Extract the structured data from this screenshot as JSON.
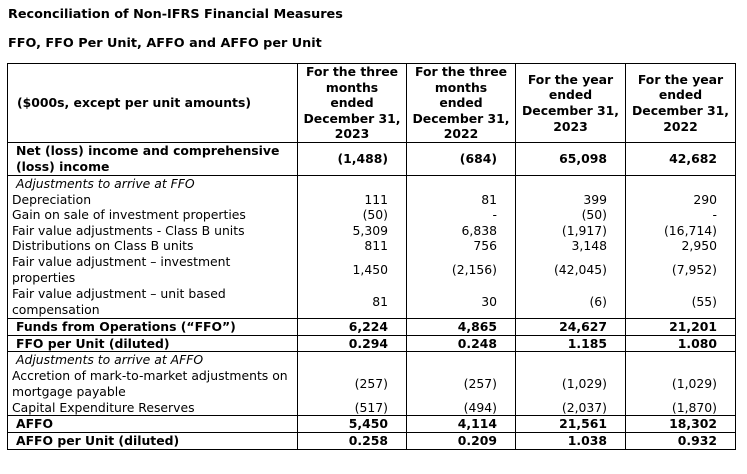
{
  "titles": {
    "main": "Reconciliation of Non-IFRS Financial Measures",
    "sub": "FFO, FFO Per Unit, AFFO and AFFO per Unit"
  },
  "table": {
    "header_label": "($000s, except per unit amounts)",
    "columns": [
      [
        "For the three",
        "months ended",
        "December 31,",
        "2023"
      ],
      [
        "For the three",
        "months ended",
        "December 31,",
        "2022"
      ],
      [
        "For the year",
        "ended",
        "December 31,",
        "2023"
      ],
      [
        "For the year",
        "ended",
        "December 31,",
        "2022"
      ]
    ],
    "rows": [
      {
        "label": "Net (loss) income and comprehensive (loss) income",
        "values": [
          "(1,488)",
          "(684)",
          "65,098",
          "42,682"
        ]
      },
      {
        "label": "Adjustments to arrive at FFO"
      },
      {
        "label": "Depreciation",
        "values": [
          "111",
          "81",
          "399",
          "290"
        ]
      },
      {
        "label": "Gain on sale of investment properties",
        "values": [
          "(50)",
          "-",
          "(50)",
          "-"
        ]
      },
      {
        "label": "Fair value adjustments - Class B units",
        "values": [
          "5,309",
          "6,838",
          "(1,917)",
          "(16,714)"
        ]
      },
      {
        "label": "Distributions on Class B units",
        "values": [
          "811",
          "756",
          "3,148",
          "2,950"
        ]
      },
      {
        "label": "Fair value adjustment – investment properties",
        "values": [
          "1,450",
          "(2,156)",
          "(42,045)",
          "(7,952)"
        ]
      },
      {
        "label": "Fair value adjustment – unit based compensation",
        "values": [
          "81",
          "30",
          "(6)",
          "(55)"
        ]
      },
      {
        "label": "Funds from Operations (“FFO”)",
        "values": [
          "6,224",
          "4,865",
          "24,627",
          "21,201"
        ]
      },
      {
        "label": "FFO per Unit (diluted)",
        "values": [
          "0.294",
          "0.248",
          "1.185",
          "1.080"
        ]
      },
      {
        "label": "Adjustments to arrive at AFFO"
      },
      {
        "label": "Accretion of mark-to-market adjustments on mortgage payable",
        "values": [
          "(257)",
          "(257)",
          "(1,029)",
          "(1,029)"
        ]
      },
      {
        "label": "Capital Expenditure Reserves",
        "values": [
          "(517)",
          "(494)",
          "(2,037)",
          "(1,870)"
        ]
      },
      {
        "label": "AFFO",
        "values": [
          "5,450",
          "4,114",
          "21,561",
          "18,302"
        ]
      },
      {
        "label": "AFFO per Unit (diluted)",
        "values": [
          "0.258",
          "0.209",
          "1.038",
          "0.932"
        ]
      }
    ]
  }
}
